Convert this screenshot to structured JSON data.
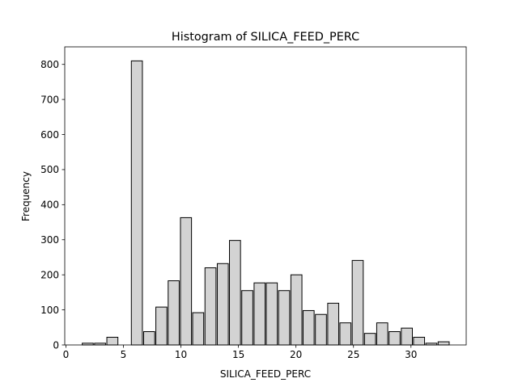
{
  "chart_data": {
    "type": "bar",
    "title": "Histogram of SILICA_FEED_PERC",
    "xlabel": "SILICA_FEED_PERC",
    "ylabel": "Frequency",
    "xlim": [
      -0.1,
      34.8
    ],
    "ylim": [
      0,
      850
    ],
    "xticks": [
      0,
      5,
      10,
      15,
      20,
      25,
      30
    ],
    "yticks": [
      0,
      100,
      200,
      300,
      400,
      500,
      600,
      700,
      800
    ],
    "grid": false,
    "bin_width": 1.0667,
    "bar_width": 0.96,
    "bar_fill": "#d3d3d3",
    "bar_edge": "#000000",
    "bins_left": [
      1.42,
      2.49,
      3.56,
      4.62,
      5.69,
      6.76,
      7.82,
      8.89,
      9.96,
      11.02,
      12.09,
      13.16,
      14.22,
      15.29,
      16.36,
      17.42,
      18.49,
      19.56,
      20.62,
      21.69,
      22.76,
      23.82,
      24.89,
      25.96,
      27.02,
      28.09,
      29.16,
      30.22,
      31.29,
      32.36
    ],
    "values": [
      5,
      5,
      22,
      0,
      810,
      38,
      108,
      183,
      363,
      92,
      220,
      232,
      298,
      155,
      177,
      177,
      155,
      200,
      98,
      87,
      119,
      63,
      241,
      33,
      63,
      38,
      48,
      22,
      5,
      9
    ]
  }
}
